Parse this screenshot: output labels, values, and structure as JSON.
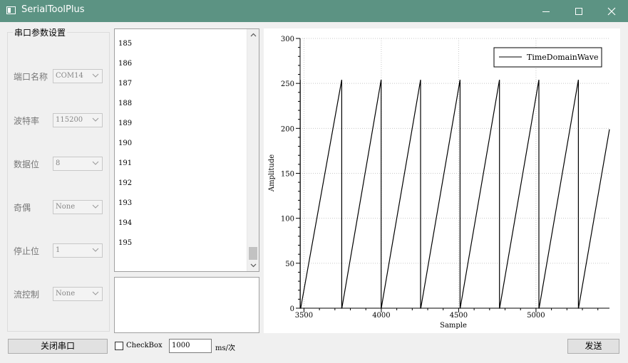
{
  "window": {
    "title": "SerialToolPlus"
  },
  "params": {
    "group_title": "串口参数设置",
    "fields": [
      {
        "label": "端口名称",
        "value": "COM14"
      },
      {
        "label": "波特率",
        "value": "115200"
      },
      {
        "label": "数据位",
        "value": "8"
      },
      {
        "label": "奇偶",
        "value": "None"
      },
      {
        "label": "停止位",
        "value": "1"
      },
      {
        "label": "流控制",
        "value": "None"
      }
    ]
  },
  "receive_list": {
    "items": [
      "185",
      "186",
      "187",
      "188",
      "189",
      "190",
      "191",
      "192",
      "193",
      "194",
      "195"
    ]
  },
  "send_text": {
    "value": ""
  },
  "bottom": {
    "close_port_label": "关闭串口",
    "checkbox_label": "CheckBox",
    "checkbox_checked": false,
    "interval_value": "1000",
    "interval_unit": "ms/次",
    "send_label": "发送"
  },
  "chart_data": {
    "type": "line",
    "xlabel": "Sample",
    "ylabel": "Amplitude",
    "xlim": [
      3475,
      5475
    ],
    "ylim": [
      0,
      300
    ],
    "xticks": [
      3500,
      4000,
      4500,
      5000
    ],
    "yticks": [
      0,
      50,
      100,
      150,
      200,
      250,
      300
    ],
    "grid": true,
    "legend": {
      "position": "top-right"
    },
    "series": [
      {
        "name": "TimeDomainWave",
        "color": "#000000",
        "x": [
          3475,
          3476,
          3476,
          3479,
          3480,
          3484,
          3489,
          3490,
          3744,
          3744,
          3745,
          3999,
          3999,
          4000,
          4254,
          4254,
          4255,
          4509,
          4509,
          4510,
          4764,
          4764,
          4765,
          5019,
          5019,
          5020,
          5274,
          5274,
          5275,
          5475
        ],
        "values": [
          240,
          254,
          0,
          0,
          1,
          5,
          10,
          11,
          254,
          0,
          0,
          254,
          0,
          0,
          254,
          0,
          0,
          254,
          0,
          0,
          254,
          0,
          0,
          254,
          0,
          0,
          254,
          0,
          0,
          199
        ]
      }
    ]
  }
}
